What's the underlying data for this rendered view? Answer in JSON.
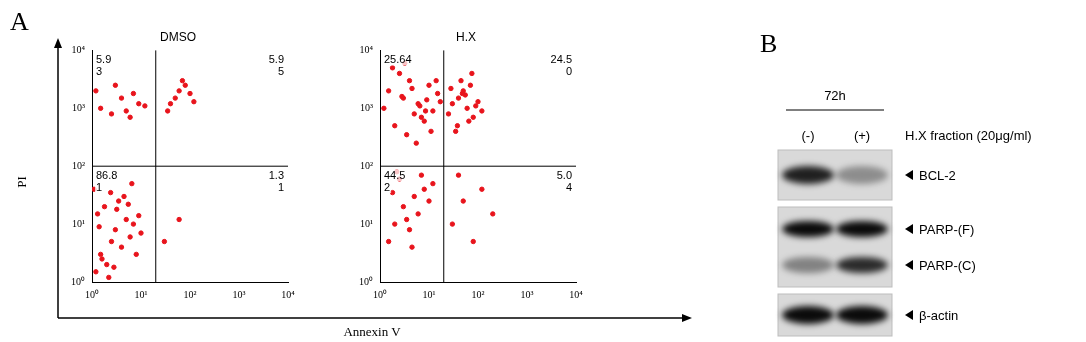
{
  "panel_labels": [
    "A",
    "B"
  ],
  "shared_axes": {
    "x_label": "Annexin V",
    "y_label": "PI"
  },
  "chart_data": [
    {
      "type": "scatter",
      "title": "DMSO",
      "log": true,
      "grid": false,
      "color": "#e8141c",
      "xlim": [
        1,
        10000
      ],
      "ylim": [
        1,
        10000
      ],
      "xticks": [
        {
          "value": 1,
          "label": "10⁰"
        },
        {
          "value": 10,
          "label": "10¹"
        },
        {
          "value": 100,
          "label": "10²"
        },
        {
          "value": 1000,
          "label": "10³"
        },
        {
          "value": 10000,
          "label": "10⁴"
        }
      ],
      "yticks": [
        {
          "value": 1,
          "label": "10⁰"
        },
        {
          "value": 10,
          "label": "10¹"
        },
        {
          "value": 100,
          "label": "10²"
        },
        {
          "value": 1000,
          "label": "10³"
        },
        {
          "value": 10000,
          "label": "10⁴"
        }
      ],
      "gates": {
        "x": 20,
        "y": 100
      },
      "quadrant_values": [
        5.93,
        5.95,
        86.81,
        1.31
      ],
      "quadrant_value_labels": [
        [
          "5.9",
          "3"
        ],
        [
          "5.9",
          "5"
        ],
        [
          "86.8",
          "1"
        ],
        [
          "1.3",
          "1"
        ]
      ],
      "x": [
        1.2,
        1.5,
        2,
        2.5,
        3,
        4,
        5,
        6,
        8,
        1.3,
        1.8,
        2.2,
        3.5,
        4.5,
        7,
        10,
        1.1,
        1.6,
        2.8,
        3.2,
        5.5,
        9,
        1.4,
        2.4,
        6.5,
        1.5,
        2.5,
        4,
        6,
        9,
        1.2,
        3,
        5,
        12,
        7,
        40,
        60,
        80,
        50,
        100,
        70,
        35,
        120,
        30,
        60
      ],
      "y": [
        1.5,
        3,
        2,
        5,
        8,
        4,
        12,
        6,
        3,
        15,
        20,
        1.2,
        25,
        30,
        10,
        7,
        40,
        2.5,
        1.8,
        18,
        22,
        14,
        9,
        35,
        50,
        1000,
        800,
        1500,
        700,
        1200,
        2000,
        2500,
        900,
        1100,
        1800,
        1200,
        2000,
        2500,
        1500,
        1800,
        3000,
        900,
        1300,
        5,
        12
      ]
    },
    {
      "type": "scatter",
      "title": "H.X",
      "log": true,
      "grid": false,
      "color": "#e8141c",
      "xlim": [
        1,
        10000
      ],
      "ylim": [
        1,
        10000
      ],
      "xticks": [
        {
          "value": 1,
          "label": "10⁰"
        },
        {
          "value": 10,
          "label": "10¹"
        },
        {
          "value": 100,
          "label": "10²"
        },
        {
          "value": 1000,
          "label": "10³"
        },
        {
          "value": 10000,
          "label": "10⁴"
        }
      ],
      "yticks": [
        {
          "value": 1,
          "label": "10⁰"
        },
        {
          "value": 10,
          "label": "10¹"
        },
        {
          "value": 100,
          "label": "10²"
        },
        {
          "value": 1000,
          "label": "10³"
        },
        {
          "value": 10000,
          "label": "10⁴"
        }
      ],
      "gates": {
        "x": 20,
        "y": 100
      },
      "quadrant_values": [
        25.64,
        24.5,
        44.52,
        5.04
      ],
      "quadrant_value_labels": [
        [
          "25.64"
        ],
        [
          "24.5",
          "0"
        ],
        [
          "44.5",
          "2"
        ],
        [
          "5.0",
          "4"
        ]
      ],
      "x": [
        1.5,
        2,
        3,
        4,
        5,
        6,
        8,
        10,
        2.5,
        3.5,
        1.8,
        7,
        12,
        4.5,
        2.2,
        1.2,
        1.5,
        2,
        3,
        4,
        5,
        6,
        8,
        10,
        12,
        15,
        2.5,
        3.5,
        7,
        9,
        1.8,
        4.5,
        6.5,
        11,
        14,
        2.8,
        5.5,
        17,
        3.2,
        8.5,
        25,
        30,
        40,
        50,
        60,
        70,
        80,
        100,
        35,
        45,
        55,
        65,
        90,
        28,
        120,
        75,
        38,
        48,
        30,
        50,
        80,
        120,
        200,
        40
      ],
      "y": [
        5,
        10,
        20,
        8,
        30,
        15,
        40,
        25,
        60,
        12,
        35,
        70,
        50,
        4,
        80,
        1000,
        2000,
        500,
        1500,
        3000,
        800,
        1200,
        600,
        2500,
        900,
        1800,
        4000,
        350,
        700,
        1400,
        5000,
        2200,
        1100,
        400,
        3000,
        1600,
        250,
        1300,
        6000,
        900,
        800,
        1200,
        1500,
        2000,
        1000,
        2500,
        700,
        1300,
        400,
        3000,
        1700,
        600,
        1100,
        2200,
        900,
        4000,
        500,
        1800,
        10,
        25,
        5,
        40,
        15,
        70
      ]
    }
  ],
  "blot": {
    "time": "72h",
    "treatment_label": "H.X fraction (20μg/ml)",
    "lanes": [
      "(-)",
      "(+)"
    ],
    "panels": [
      {
        "bands": [
          {
            "label": "BCL-2",
            "intensity": [
              0.85,
              0.35
            ]
          }
        ]
      },
      {
        "bands": [
          {
            "label": "PARP-(F)",
            "intensity": [
              0.95,
              0.95
            ]
          },
          {
            "label": "PARP-(C)",
            "intensity": [
              0.4,
              0.8
            ]
          }
        ]
      },
      {
        "bands": [
          {
            "label": "β-actin",
            "intensity": [
              0.95,
              0.95
            ]
          }
        ]
      }
    ]
  }
}
